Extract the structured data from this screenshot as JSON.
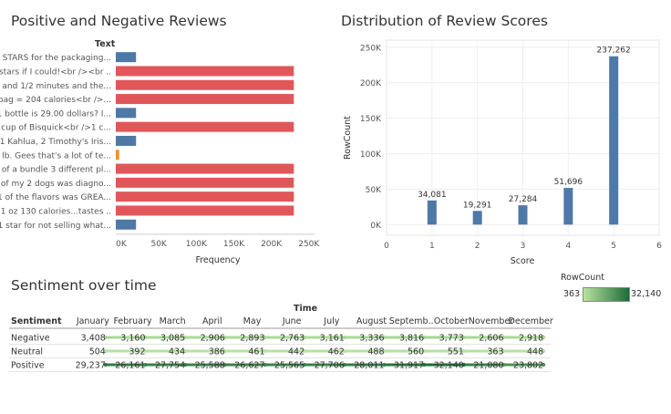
{
  "colors": {
    "positive": "#4e79a7",
    "negative": "#e15759",
    "neutral": "#f28e2b",
    "bar": "#4e79a7",
    "heat_low": "#b6e3a0",
    "heat_high": "#1f6b36"
  },
  "legend": {
    "title": "RowCount",
    "min_label": "363",
    "max_label": "32,140"
  },
  "chart_data": [
    {
      "type": "bar",
      "orientation": "horizontal",
      "title": "Positive and Negative Reviews",
      "row_header": "Text",
      "xlabel": "Frequency",
      "xlim": [
        0,
        260000
      ],
      "x_ticks": [
        "0K",
        "50K",
        "100K",
        "150K",
        "200K",
        "250K"
      ],
      "categories": [
        "0 STARS for the packaging...",
        "0 stars if I could!<br /><br ..",
        "1 and 1/2 minutes and the...",
        "1 bag = 204 calories<br />...",
        "1 bottle is 29.00 dollars? I...",
        "1 cup of Bisquick<br />1 c...",
        "1 Kahlua, 2 Timothy's Iris...",
        "1 lb. Gees that's a lot of te...",
        "1 of a bundle 3 different pl...",
        "1 of my 2 dogs was diagno...",
        "1 of the flavors was GREA...",
        "1 oz 130 calories...tastes ..",
        "1 star for not selling what..."
      ],
      "values": [
        27000,
        237262,
        237262,
        237262,
        27000,
        237262,
        27000,
        4500,
        237262,
        237262,
        237262,
        237262,
        27000
      ],
      "sentiment": [
        "Positive",
        "Negative",
        "Negative",
        "Negative",
        "Positive",
        "Negative",
        "Positive",
        "Neutral",
        "Negative",
        "Negative",
        "Negative",
        "Negative",
        "Positive"
      ]
    },
    {
      "type": "bar",
      "title": "Distribution of Review Scores",
      "xlabel": "Score",
      "ylabel": "RowCount",
      "x": [
        1,
        2,
        3,
        4,
        5
      ],
      "values": [
        34081,
        19291,
        27284,
        51696,
        237262
      ],
      "value_labels": [
        "34,081",
        "19,291",
        "27,284",
        "51,696",
        "237,262"
      ],
      "xlim": [
        0,
        6
      ],
      "x_ticks": [
        "0",
        "1",
        "2",
        "3",
        "4",
        "5",
        "6"
      ],
      "ylim": [
        -15000,
        260000
      ],
      "y_ticks": [
        {
          "v": 0,
          "label": "0K"
        },
        {
          "v": 50000,
          "label": "50K"
        },
        {
          "v": 100000,
          "label": "100K"
        },
        {
          "v": 150000,
          "label": "150K"
        },
        {
          "v": 200000,
          "label": "200K"
        },
        {
          "v": 250000,
          "label": "250K"
        }
      ]
    },
    {
      "type": "line",
      "title": "Sentiment over time",
      "column_header": "Time",
      "row_header": "Sentiment",
      "categories": [
        "January",
        "February",
        "March",
        "April",
        "May",
        "June",
        "July",
        "August",
        "Septemb..",
        "October",
        "November",
        "December"
      ],
      "series": [
        {
          "name": "Negative",
          "values": [
            3408,
            3160,
            3085,
            2906,
            2893,
            2763,
            3161,
            3336,
            3816,
            3773,
            2606,
            2918
          ],
          "labels": [
            "3,408",
            "3,160",
            "3,085",
            "2,906",
            "2,893",
            "2,763",
            "3,161",
            "3,336",
            "3,816",
            "3,773",
            "2,606",
            "2,918"
          ]
        },
        {
          "name": "Neutral",
          "values": [
            504,
            392,
            434,
            386,
            461,
            442,
            462,
            488,
            560,
            551,
            363,
            448
          ],
          "labels": [
            "504",
            "392",
            "434",
            "386",
            "461",
            "442",
            "462",
            "488",
            "560",
            "551",
            "363",
            "448"
          ]
        },
        {
          "name": "Positive",
          "values": [
            29237,
            26161,
            27754,
            25588,
            26627,
            25565,
            27706,
            28011,
            31917,
            32140,
            21080,
            23802
          ],
          "labels": [
            "29,237",
            "26,161",
            "27,754",
            "25,588",
            "26,627",
            "25,565",
            "27,706",
            "28,011",
            "31,917",
            "32,140",
            "21,080",
            "23,802"
          ]
        }
      ]
    }
  ]
}
